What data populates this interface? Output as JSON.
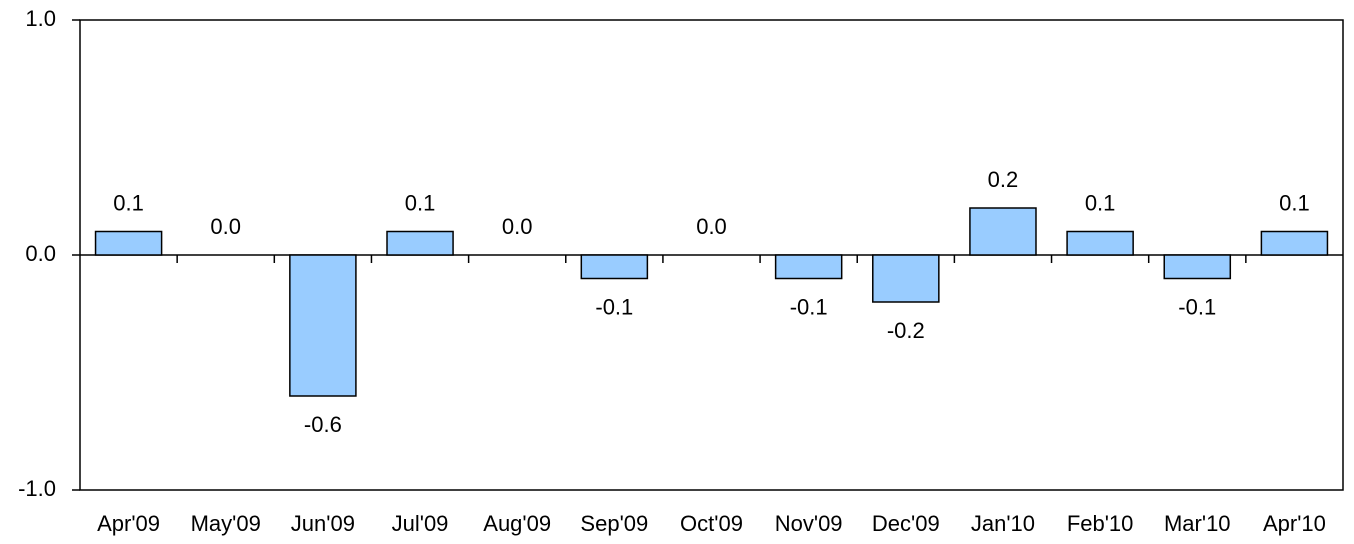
{
  "chart_data": {
    "type": "bar",
    "categories": [
      "Apr'09",
      "May'09",
      "Jun'09",
      "Jul'09",
      "Aug'09",
      "Sep'09",
      "Oct'09",
      "Nov'09",
      "Dec'09",
      "Jan'10",
      "Feb'10",
      "Mar'10",
      "Apr'10"
    ],
    "values": [
      0.1,
      0,
      -0.6,
      0.1,
      0,
      -0.1,
      0,
      -0.1,
      -0.2,
      0.2,
      0.1,
      -0.1,
      0.1
    ],
    "value_labels": [
      "0.1",
      "0.0",
      "-0.6",
      "0.1",
      "0.0",
      "-0.1",
      "0.0",
      "-0.1",
      "-0.2",
      "0.2",
      "0.1",
      "-0.1",
      "0.1"
    ],
    "color": "#99ccff",
    "ylim": [
      -1,
      1
    ],
    "yticks": [
      {
        "value": -1,
        "label": "-1.0"
      },
      {
        "value": 0,
        "label": "0.0"
      },
      {
        "value": 1,
        "label": "1.0"
      }
    ],
    "grid": false
  }
}
